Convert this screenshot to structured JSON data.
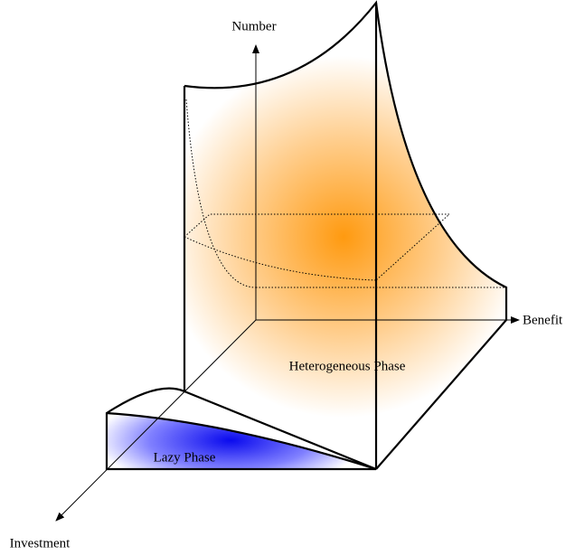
{
  "axes": {
    "number": "Number",
    "benefit": "Benefit",
    "investment": "Investment"
  },
  "regions": {
    "heterogeneous": "Heterogeneous Phase",
    "lazy": "Lazy Phase"
  }
}
